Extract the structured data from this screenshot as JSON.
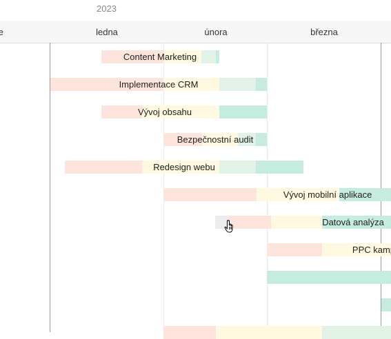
{
  "timeline": {
    "year": "2023",
    "months": [
      "ce",
      "ledna",
      "února",
      "března"
    ]
  },
  "tasks": [
    {
      "name": "Content Marketing"
    },
    {
      "name": "Implementace CRM"
    },
    {
      "name": "Vývoj obsahu"
    },
    {
      "name": "Bezpečnostní audit"
    },
    {
      "name": "Redesign webu"
    },
    {
      "name": "Vývoj mobilní aplikace"
    },
    {
      "name": "Datová analýza"
    },
    {
      "name": "PPC kamp"
    },
    {
      "name": ""
    },
    {
      "name": ""
    },
    {
      "name": ""
    }
  ],
  "colors": {
    "phase_1": "#fde4dc",
    "phase_2": "#fef9e0",
    "phase_3": "#e3f2e6",
    "phase_4": "#c6ebe0",
    "hover": "#ececec"
  },
  "cursor": "hand-pointer-icon"
}
